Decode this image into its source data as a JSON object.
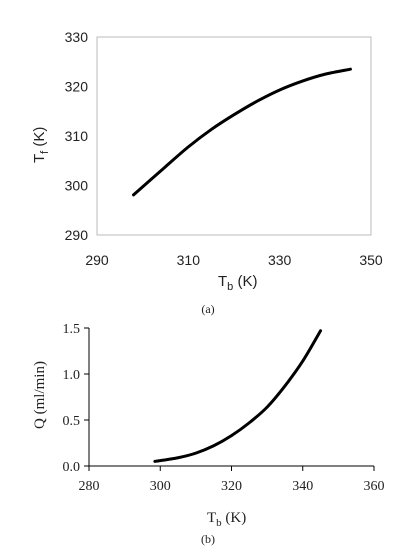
{
  "chart_data": [
    {
      "type": "line",
      "panel_label": "(a)",
      "xlabel": {
        "base": "T",
        "sub": "b",
        "unit": " (K)"
      },
      "ylabel": {
        "base": "T",
        "sub": "f",
        "unit": " (K)"
      },
      "xlim": [
        290,
        350
      ],
      "ylim": [
        290,
        330
      ],
      "xticks": [
        "290",
        "310",
        "330",
        "350"
      ],
      "yticks": [
        "290",
        "300",
        "310",
        "320",
        "330"
      ],
      "grid": false,
      "series": [
        {
          "color": "#000000",
          "x": [
            298,
            305,
            310,
            315,
            320,
            325,
            330,
            335,
            340,
            345.5
          ],
          "y": [
            298.1,
            303.8,
            307.8,
            311.3,
            314.3,
            317.0,
            319.3,
            321.1,
            322.5,
            323.5
          ]
        }
      ]
    },
    {
      "type": "line",
      "panel_label": "(b)",
      "xlabel": {
        "base": "T",
        "sub": "b",
        "unit": " (K)"
      },
      "ylabel": {
        "text": "Q (ml/min)"
      },
      "xlim": [
        280,
        360
      ],
      "ylim": [
        0,
        1.5
      ],
      "xticks": [
        "280",
        "300",
        "320",
        "340",
        "360"
      ],
      "yticks": [
        "0.0",
        "0.5",
        "1.0",
        "1.5"
      ],
      "grid": false,
      "series": [
        {
          "color": "#000000",
          "x": [
            298.5,
            305,
            310,
            315,
            320,
            325,
            330,
            335,
            340,
            345
          ],
          "y": [
            0.05,
            0.09,
            0.14,
            0.22,
            0.33,
            0.47,
            0.64,
            0.87,
            1.14,
            1.47
          ]
        }
      ]
    }
  ]
}
